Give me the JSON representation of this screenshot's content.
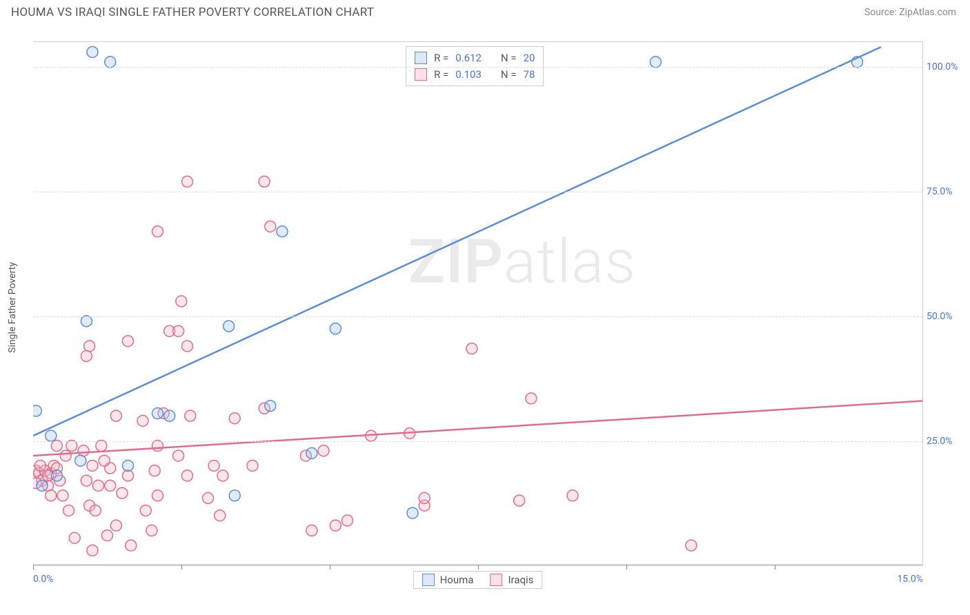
{
  "title": "HOUMA VS IRAQI SINGLE FATHER POVERTY CORRELATION CHART",
  "source": "Source: ZipAtlas.com",
  "watermark_bold": "ZIP",
  "watermark_light": "atlas",
  "chart": {
    "type": "scatter",
    "y_axis_title": "Single Father Poverty",
    "xlim": [
      0,
      15
    ],
    "ylim": [
      0,
      105
    ],
    "y_ticks": [
      25,
      50,
      75,
      100
    ],
    "y_tick_labels": [
      "25.0%",
      "50.0%",
      "75.0%",
      "100.0%"
    ],
    "x_ticks_major": [
      0,
      15
    ],
    "x_tick_labels": [
      "0.0%",
      "15.0%"
    ],
    "x_ticks_minor": [
      0,
      2.5,
      5,
      7.5,
      10,
      12.5
    ],
    "grid_color": "#dddddd",
    "axis_color": "#888888",
    "background_color": "#ffffff",
    "tick_label_color": "#4a74d8",
    "marker_radius": 8,
    "marker_fill_opacity": 0.35,
    "series": [
      {
        "name": "Houma",
        "stroke": "#5b8dd6",
        "fill": "#a9c6ec",
        "R": "0.612",
        "N": "20",
        "trend": {
          "x1": 0,
          "y1": 26,
          "x2": 14.3,
          "y2": 104
        },
        "points": [
          [
            1.3,
            101
          ],
          [
            1.0,
            103
          ],
          [
            10.5,
            101
          ],
          [
            13.9,
            101
          ],
          [
            0.9,
            49
          ],
          [
            3.3,
            48
          ],
          [
            5.1,
            47.5
          ],
          [
            4.2,
            67
          ],
          [
            0.05,
            31
          ],
          [
            0.3,
            26
          ],
          [
            2.1,
            30.5
          ],
          [
            4.0,
            32
          ],
          [
            0.8,
            21
          ],
          [
            1.6,
            20
          ],
          [
            3.4,
            14
          ],
          [
            4.7,
            22.5
          ],
          [
            6.4,
            10.5
          ],
          [
            2.3,
            30
          ],
          [
            0.4,
            18
          ],
          [
            0.15,
            16
          ]
        ]
      },
      {
        "name": "Iraqis",
        "stroke": "#e36b8a",
        "fill": "#f4b6c6",
        "R": "0.103",
        "N": "78",
        "trend": {
          "x1": 0,
          "y1": 22,
          "x2": 15,
          "y2": 33
        },
        "points": [
          [
            2.6,
            77
          ],
          [
            2.1,
            67
          ],
          [
            3.9,
            77
          ],
          [
            4.0,
            68
          ],
          [
            2.5,
            53
          ],
          [
            0.95,
            44
          ],
          [
            1.6,
            45
          ],
          [
            2.3,
            47
          ],
          [
            2.45,
            47
          ],
          [
            2.6,
            44
          ],
          [
            0.9,
            42
          ],
          [
            0.05,
            19
          ],
          [
            0.1,
            18.5
          ],
          [
            0.15,
            17
          ],
          [
            0.2,
            19
          ],
          [
            0.25,
            16
          ],
          [
            0.3,
            18.5
          ],
          [
            0.35,
            20
          ],
          [
            0.4,
            24
          ],
          [
            0.5,
            14
          ],
          [
            0.55,
            22
          ],
          [
            0.6,
            11
          ],
          [
            0.65,
            24
          ],
          [
            0.95,
            12
          ],
          [
            1.0,
            20
          ],
          [
            1.0,
            3
          ],
          [
            1.05,
            11
          ],
          [
            1.1,
            16
          ],
          [
            1.15,
            24
          ],
          [
            1.25,
            6
          ],
          [
            1.3,
            19.5
          ],
          [
            1.4,
            8
          ],
          [
            1.4,
            30
          ],
          [
            1.5,
            14.5
          ],
          [
            1.6,
            18
          ],
          [
            1.85,
            29
          ],
          [
            1.9,
            11
          ],
          [
            2.0,
            7
          ],
          [
            2.05,
            19
          ],
          [
            2.1,
            24
          ],
          [
            2.2,
            30.5
          ],
          [
            2.6,
            18
          ],
          [
            2.65,
            30
          ],
          [
            2.95,
            13.5
          ],
          [
            3.05,
            20
          ],
          [
            3.2,
            18
          ],
          [
            3.4,
            29.5
          ],
          [
            3.7,
            20
          ],
          [
            3.9,
            31.5
          ],
          [
            4.6,
            22
          ],
          [
            4.9,
            23
          ],
          [
            4.7,
            7
          ],
          [
            5.1,
            8
          ],
          [
            5.3,
            9
          ],
          [
            5.7,
            26
          ],
          [
            6.35,
            26.5
          ],
          [
            6.6,
            12
          ],
          [
            6.6,
            13.5
          ],
          [
            7.4,
            43.5
          ],
          [
            8.2,
            13
          ],
          [
            8.4,
            33.5
          ],
          [
            9.1,
            14
          ],
          [
            11.1,
            4
          ],
          [
            0.3,
            14
          ],
          [
            0.45,
            17
          ],
          [
            0.25,
            18
          ],
          [
            0.7,
            5.5
          ],
          [
            0.85,
            23
          ],
          [
            1.2,
            21
          ],
          [
            1.65,
            4
          ],
          [
            2.1,
            14
          ],
          [
            2.45,
            22
          ],
          [
            3.15,
            10
          ],
          [
            0.05,
            16.5
          ],
          [
            0.12,
            20
          ],
          [
            0.4,
            19.5
          ],
          [
            0.9,
            17
          ],
          [
            1.3,
            16
          ]
        ]
      }
    ],
    "stats_labels": {
      "R": "R =",
      "N": "N ="
    },
    "bottom_legend": [
      "Houma",
      "Iraqis"
    ]
  }
}
